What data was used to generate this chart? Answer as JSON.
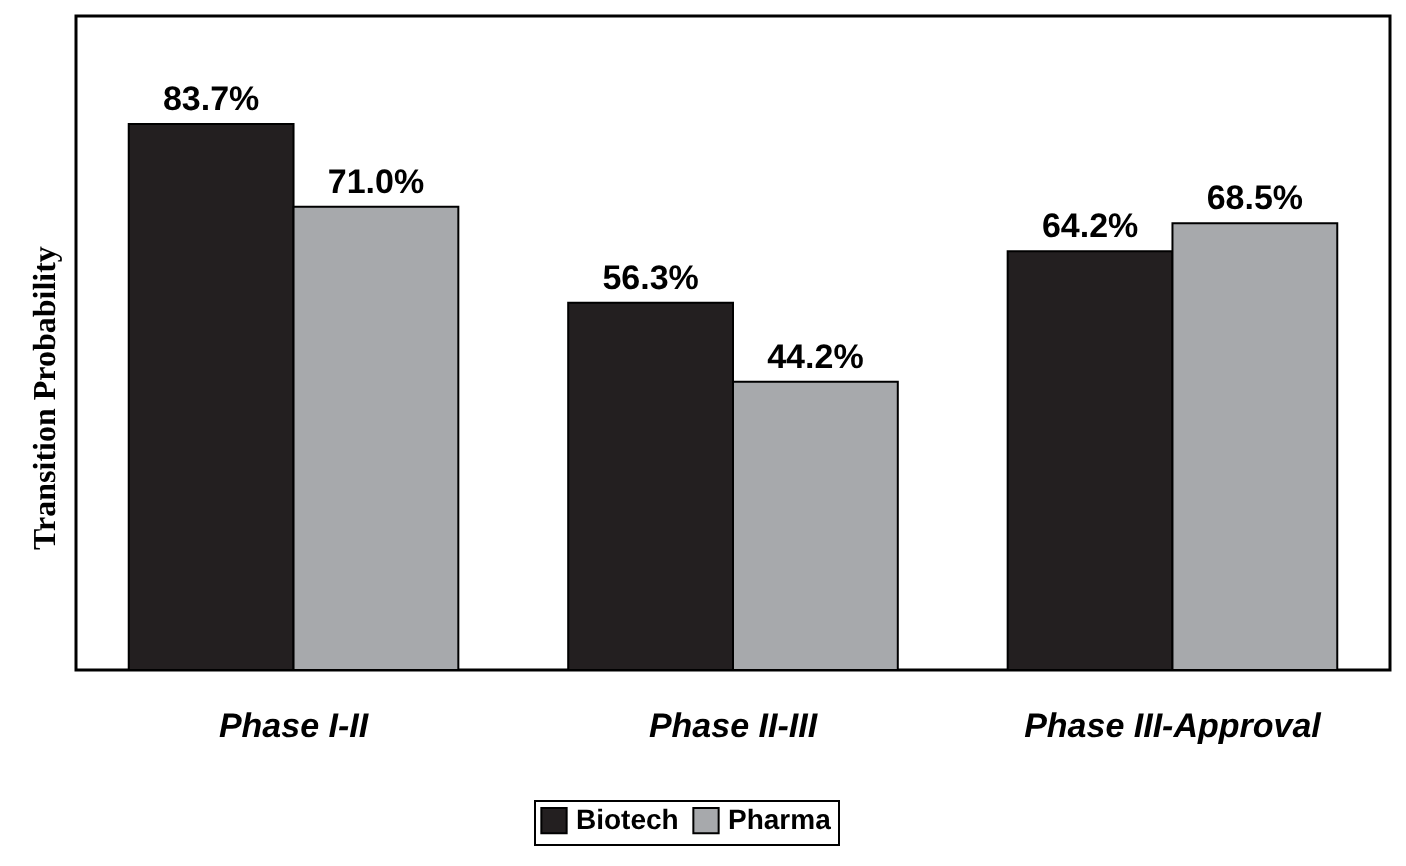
{
  "chart_data": {
    "type": "bar",
    "ylabel": "Transition Probability",
    "categories": [
      "Phase I-II",
      "Phase II-III",
      "Phase III-Approval"
    ],
    "series": [
      {
        "name": "Biotech",
        "color": "#231f20",
        "values": [
          83.7,
          56.3,
          64.2
        ],
        "value_labels": [
          "83.7%",
          "56.3%",
          "64.2%"
        ]
      },
      {
        "name": "Pharma",
        "color": "#a7a9ac",
        "values": [
          71.0,
          44.2,
          68.5
        ],
        "value_labels": [
          "71.0%",
          "44.2%",
          "68.5%"
        ]
      }
    ],
    "tick_labels": "x",
    "legend": "bottom"
  }
}
